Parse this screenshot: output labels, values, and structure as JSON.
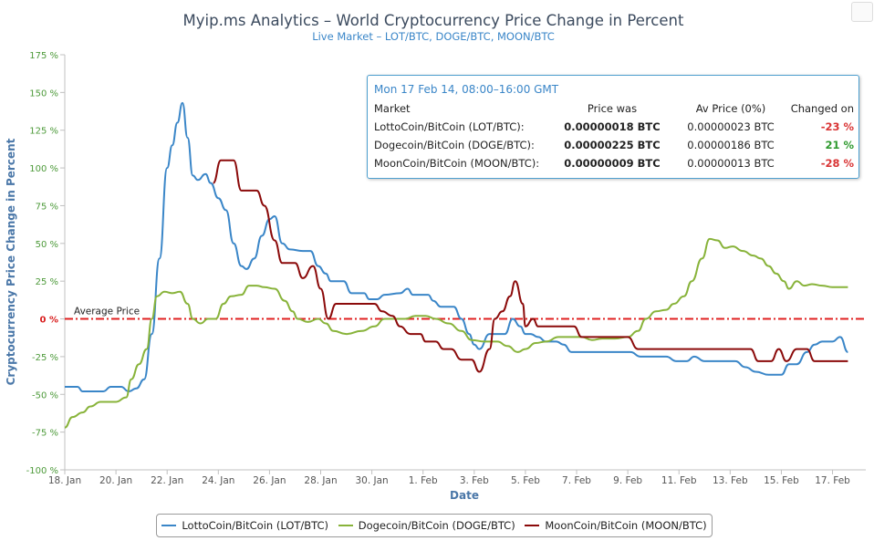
{
  "chart_data": {
    "type": "line",
    "title": "Myip.ms Analytics – World Cryptocurrency Price Change in Percent",
    "subtitle": "Live Market – LOT/BTC, DOGE/BTC, MOON/BTC",
    "xlabel": "Date",
    "ylabel": "Cryptocurrency Price Change in Percent",
    "xlim": [
      18,
      49.3
    ],
    "ylim": [
      -100,
      175
    ],
    "x_ticks": [
      {
        "x": 18,
        "label": "18. Jan"
      },
      {
        "x": 20,
        "label": "20. Jan"
      },
      {
        "x": 22,
        "label": "22. Jan"
      },
      {
        "x": 24,
        "label": "24. Jan"
      },
      {
        "x": 26,
        "label": "26. Jan"
      },
      {
        "x": 28,
        "label": "28. Jan"
      },
      {
        "x": 30,
        "label": "30. Jan"
      },
      {
        "x": 32,
        "label": "1. Feb"
      },
      {
        "x": 34,
        "label": "3. Feb"
      },
      {
        "x": 36,
        "label": "5. Feb"
      },
      {
        "x": 38,
        "label": "7. Feb"
      },
      {
        "x": 40,
        "label": "9. Feb"
      },
      {
        "x": 42,
        "label": "11. Feb"
      },
      {
        "x": 44,
        "label": "13. Feb"
      },
      {
        "x": 46,
        "label": "15. Feb"
      },
      {
        "x": 48,
        "label": "17. Feb"
      }
    ],
    "y_ticks": [
      {
        "y": 175,
        "label": "175 %"
      },
      {
        "y": 150,
        "label": "150 %"
      },
      {
        "y": 125,
        "label": "125 %"
      },
      {
        "y": 100,
        "label": "100 %"
      },
      {
        "y": 75,
        "label": "75 %"
      },
      {
        "y": 50,
        "label": "50 %"
      },
      {
        "y": 25,
        "label": "25 %"
      },
      {
        "y": 0,
        "label": "0 %"
      },
      {
        "y": -25,
        "label": "-25 %"
      },
      {
        "y": -50,
        "label": "-50 %"
      },
      {
        "y": -75,
        "label": "-75 %"
      },
      {
        "y": -100,
        "label": "-100 %"
      }
    ],
    "reference_line": {
      "y": 0,
      "label": "Average Price",
      "color": "#e02020"
    },
    "grid": false,
    "legend": "bottom-center",
    "series": [
      {
        "name": "LottoCoin/BitCoin (LOT/BTC)",
        "color": "#3a86c8",
        "points": [
          [
            18.0,
            -45
          ],
          [
            18.5,
            -45
          ],
          [
            18.7,
            -48
          ],
          [
            19.0,
            -48
          ],
          [
            19.5,
            -48
          ],
          [
            19.8,
            -45
          ],
          [
            20.2,
            -45
          ],
          [
            20.5,
            -48
          ],
          [
            20.8,
            -46
          ],
          [
            21.1,
            -40
          ],
          [
            21.4,
            -10
          ],
          [
            21.7,
            40
          ],
          [
            22.0,
            100
          ],
          [
            22.2,
            115
          ],
          [
            22.4,
            130
          ],
          [
            22.6,
            143
          ],
          [
            22.8,
            120
          ],
          [
            23.0,
            95
          ],
          [
            23.2,
            92
          ],
          [
            23.5,
            96
          ],
          [
            23.7,
            90
          ],
          [
            24.0,
            80
          ],
          [
            24.3,
            72
          ],
          [
            24.6,
            50
          ],
          [
            24.9,
            35
          ],
          [
            25.1,
            33
          ],
          [
            25.4,
            40
          ],
          [
            25.7,
            55
          ],
          [
            26.0,
            66
          ],
          [
            26.2,
            68
          ],
          [
            26.5,
            50
          ],
          [
            26.8,
            46
          ],
          [
            27.3,
            45
          ],
          [
            27.6,
            45
          ],
          [
            27.9,
            35
          ],
          [
            28.2,
            30
          ],
          [
            28.4,
            25
          ],
          [
            28.9,
            25
          ],
          [
            29.2,
            17
          ],
          [
            29.7,
            17
          ],
          [
            29.9,
            13
          ],
          [
            30.2,
            13
          ],
          [
            30.5,
            16
          ],
          [
            31.1,
            17
          ],
          [
            31.4,
            20
          ],
          [
            31.6,
            16
          ],
          [
            32.2,
            16
          ],
          [
            32.4,
            12
          ],
          [
            32.7,
            8
          ],
          [
            33.2,
            8
          ],
          [
            33.5,
            0
          ],
          [
            33.8,
            -10
          ],
          [
            34.0,
            -17
          ],
          [
            34.2,
            -20
          ],
          [
            34.6,
            -10
          ],
          [
            34.9,
            -10
          ],
          [
            35.2,
            -10
          ],
          [
            35.5,
            0
          ],
          [
            35.8,
            -5
          ],
          [
            36.0,
            -10
          ],
          [
            36.2,
            -10
          ],
          [
            36.5,
            -12
          ],
          [
            36.8,
            -15
          ],
          [
            37.2,
            -15
          ],
          [
            37.5,
            -17
          ],
          [
            37.8,
            -22
          ],
          [
            38.3,
            -22
          ],
          [
            38.6,
            -22
          ],
          [
            39.0,
            -22
          ],
          [
            39.6,
            -22
          ],
          [
            40.1,
            -22
          ],
          [
            40.5,
            -25
          ],
          [
            41.0,
            -25
          ],
          [
            41.5,
            -25
          ],
          [
            41.9,
            -28
          ],
          [
            42.3,
            -28
          ],
          [
            42.6,
            -25
          ],
          [
            43.0,
            -28
          ],
          [
            43.4,
            -28
          ],
          [
            43.8,
            -28
          ],
          [
            44.2,
            -28
          ],
          [
            44.6,
            -32
          ],
          [
            45.0,
            -35
          ],
          [
            45.5,
            -37
          ],
          [
            46.0,
            -37
          ],
          [
            46.3,
            -30
          ],
          [
            46.6,
            -30
          ],
          [
            47.0,
            -22
          ],
          [
            47.3,
            -17
          ],
          [
            47.6,
            -15
          ],
          [
            48.0,
            -15
          ],
          [
            48.3,
            -12
          ],
          [
            48.6,
            -22
          ]
        ]
      },
      {
        "name": "Dogecoin/BitCoin (DOGE/BTC)",
        "color": "#88b33a",
        "points": [
          [
            18.0,
            -72
          ],
          [
            18.3,
            -65
          ],
          [
            18.7,
            -62
          ],
          [
            19.0,
            -58
          ],
          [
            19.4,
            -55
          ],
          [
            20.0,
            -55
          ],
          [
            20.4,
            -52
          ],
          [
            20.6,
            -40
          ],
          [
            20.9,
            -30
          ],
          [
            21.2,
            -20
          ],
          [
            21.4,
            0
          ],
          [
            21.6,
            15
          ],
          [
            21.9,
            18
          ],
          [
            22.2,
            17
          ],
          [
            22.5,
            18
          ],
          [
            22.8,
            10
          ],
          [
            23.0,
            0
          ],
          [
            23.3,
            -3
          ],
          [
            23.6,
            0
          ],
          [
            23.9,
            0
          ],
          [
            24.2,
            10
          ],
          [
            24.5,
            15
          ],
          [
            24.9,
            16
          ],
          [
            25.2,
            22
          ],
          [
            25.5,
            22
          ],
          [
            25.8,
            21
          ],
          [
            26.2,
            20
          ],
          [
            26.6,
            12
          ],
          [
            26.9,
            5
          ],
          [
            27.1,
            0
          ],
          [
            27.5,
            -2
          ],
          [
            27.9,
            0
          ],
          [
            28.2,
            -3
          ],
          [
            28.5,
            -8
          ],
          [
            29.0,
            -10
          ],
          [
            29.6,
            -8
          ],
          [
            30.1,
            -5
          ],
          [
            30.5,
            0
          ],
          [
            30.9,
            0
          ],
          [
            31.3,
            0
          ],
          [
            31.7,
            2
          ],
          [
            32.1,
            2
          ],
          [
            32.5,
            0
          ],
          [
            33.0,
            -3
          ],
          [
            33.5,
            -8
          ],
          [
            33.9,
            -14
          ],
          [
            34.4,
            -15
          ],
          [
            34.9,
            -15
          ],
          [
            35.3,
            -18
          ],
          [
            35.7,
            -22
          ],
          [
            36.0,
            -20
          ],
          [
            36.4,
            -16
          ],
          [
            36.8,
            -15
          ],
          [
            37.3,
            -12
          ],
          [
            37.7,
            -12
          ],
          [
            38.2,
            -12
          ],
          [
            38.6,
            -14
          ],
          [
            39.0,
            -13
          ],
          [
            39.5,
            -13
          ],
          [
            40.0,
            -12
          ],
          [
            40.4,
            -8
          ],
          [
            40.7,
            0
          ],
          [
            41.1,
            5
          ],
          [
            41.5,
            6
          ],
          [
            41.8,
            10
          ],
          [
            42.2,
            15
          ],
          [
            42.5,
            25
          ],
          [
            42.9,
            40
          ],
          [
            43.2,
            53
          ],
          [
            43.5,
            52
          ],
          [
            43.8,
            47
          ],
          [
            44.1,
            48
          ],
          [
            44.5,
            45
          ],
          [
            44.9,
            42
          ],
          [
            45.2,
            40
          ],
          [
            45.5,
            35
          ],
          [
            45.8,
            30
          ],
          [
            46.1,
            25
          ],
          [
            46.3,
            20
          ],
          [
            46.6,
            25
          ],
          [
            46.9,
            22
          ],
          [
            47.2,
            23
          ],
          [
            47.6,
            22
          ],
          [
            48.0,
            21
          ],
          [
            48.3,
            21
          ],
          [
            48.6,
            21
          ]
        ]
      },
      {
        "name": "MoonCoin/BitCoin (MOON/BTC)",
        "color": "#8b0a0a",
        "points": [
          [
            23.8,
            90
          ],
          [
            24.1,
            105
          ],
          [
            24.6,
            105
          ],
          [
            24.9,
            85
          ],
          [
            25.5,
            85
          ],
          [
            25.8,
            75
          ],
          [
            26.2,
            52
          ],
          [
            26.5,
            37
          ],
          [
            27.0,
            37
          ],
          [
            27.3,
            27
          ],
          [
            27.7,
            35
          ],
          [
            28.0,
            20
          ],
          [
            28.3,
            0
          ],
          [
            28.6,
            10
          ],
          [
            29.0,
            10
          ],
          [
            29.6,
            10
          ],
          [
            30.1,
            10
          ],
          [
            30.4,
            5
          ],
          [
            30.8,
            2
          ],
          [
            31.1,
            -5
          ],
          [
            31.5,
            -10
          ],
          [
            31.9,
            -10
          ],
          [
            32.1,
            -15
          ],
          [
            32.5,
            -15
          ],
          [
            32.8,
            -20
          ],
          [
            33.1,
            -20
          ],
          [
            33.5,
            -27
          ],
          [
            33.9,
            -27
          ],
          [
            34.2,
            -35
          ],
          [
            34.6,
            -20
          ],
          [
            34.8,
            0
          ],
          [
            35.1,
            5
          ],
          [
            35.4,
            15
          ],
          [
            35.6,
            25
          ],
          [
            35.9,
            10
          ],
          [
            36.0,
            -5
          ],
          [
            36.3,
            0
          ],
          [
            36.5,
            -5
          ],
          [
            36.8,
            -5
          ],
          [
            37.2,
            -5
          ],
          [
            37.6,
            -5
          ],
          [
            37.9,
            -5
          ],
          [
            38.2,
            -12
          ],
          [
            38.6,
            -12
          ],
          [
            39.0,
            -12
          ],
          [
            39.5,
            -12
          ],
          [
            40.0,
            -12
          ],
          [
            40.4,
            -20
          ],
          [
            40.9,
            -20
          ],
          [
            41.5,
            -20
          ],
          [
            42.0,
            -20
          ],
          [
            42.6,
            -20
          ],
          [
            43.2,
            -20
          ],
          [
            43.8,
            -20
          ],
          [
            44.3,
            -20
          ],
          [
            44.8,
            -20
          ],
          [
            45.1,
            -28
          ],
          [
            45.6,
            -28
          ],
          [
            45.9,
            -20
          ],
          [
            46.2,
            -28
          ],
          [
            46.6,
            -20
          ],
          [
            47.0,
            -20
          ],
          [
            47.3,
            -28
          ],
          [
            47.7,
            -28
          ],
          [
            48.0,
            -28
          ],
          [
            48.6,
            -28
          ]
        ]
      }
    ]
  },
  "tooltip": {
    "heading": "Mon 17 Feb 14, 08:00–16:00 GMT",
    "columns": [
      "Market",
      "Price was",
      "Av Price (0%)",
      "Changed on"
    ],
    "rows": [
      {
        "market": "LottoCoin/BitCoin (LOT/BTC):",
        "price": "0.00000018 BTC",
        "avg": "0.00000023 BTC",
        "change": "-23 %",
        "change_color": "#d93434"
      },
      {
        "market": "Dogecoin/BitCoin (DOGE/BTC):",
        "price": "0.00000225 BTC",
        "avg": "0.00000186 BTC",
        "change": "21 %",
        "change_color": "#2e9a2e"
      },
      {
        "market": "MoonCoin/BitCoin (MOON/BTC):",
        "price": "0.00000009 BTC",
        "avg": "0.00000013 BTC",
        "change": "-28 %",
        "change_color": "#d93434"
      }
    ]
  },
  "legend_items": [
    {
      "label": "LottoCoin/BitCoin (LOT/BTC)",
      "color": "#3a86c8"
    },
    {
      "label": "Dogecoin/BitCoin (DOGE/BTC)",
      "color": "#88b33a"
    },
    {
      "label": "MoonCoin/BitCoin (MOON/BTC)",
      "color": "#8b0a0a"
    }
  ]
}
